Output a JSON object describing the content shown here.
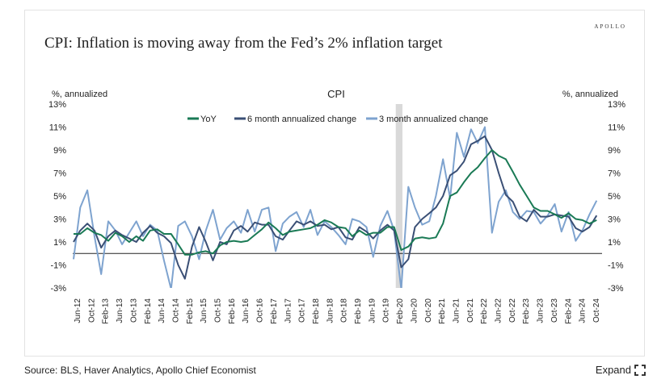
{
  "brand": "APOLLO",
  "title": "CPI: Inflation is moving away from the Fed’s 2% inflation target",
  "source": "Source: BLS, Haver Analytics, Apollo Chief Economist",
  "expand_label": "Expand",
  "chart_data": {
    "type": "line",
    "title": "CPI",
    "ylabel_left": "%, annualized",
    "ylabel_right": "%, annualized",
    "ylim": [
      -3,
      13
    ],
    "yticks": [
      "13%",
      "11%",
      "9%",
      "7%",
      "5%",
      "3%",
      "1%",
      "-1%",
      "-3%"
    ],
    "xlim": [
      2012.4,
      2025.05
    ],
    "xticks": [
      "Jun-12",
      "Oct-12",
      "Feb-13",
      "Jun-13",
      "Oct-13",
      "Feb-14",
      "Jun-14",
      "Oct-14",
      "Feb-15",
      "Jun-15",
      "Oct-15",
      "Feb-16",
      "Jun-16",
      "Oct-16",
      "Feb-17",
      "Jun-17",
      "Oct-17",
      "Feb-18",
      "Jun-18",
      "Oct-18",
      "Feb-19",
      "Jun-19",
      "Oct-19",
      "Feb-20",
      "Jun-20",
      "Oct-20",
      "Feb-21",
      "Jun-21",
      "Oct-21",
      "Feb-22",
      "Jun-22",
      "Oct-22",
      "Feb-23",
      "Jun-23",
      "Oct-23",
      "Feb-24",
      "Jun-24",
      "Oct-24"
    ],
    "recession": [
      2020.12,
      2020.28
    ],
    "legend_position": "top-center",
    "grid": false,
    "colors": {
      "yoy": "#1a7a55",
      "six_month": "#3a4f75",
      "three_month": "#7ea3cf",
      "recession": "#d9d9d9"
    },
    "series": [
      {
        "name": "YoY",
        "key": "yoy",
        "x": [
          2012.42,
          2012.58,
          2012.75,
          2012.92,
          2013.08,
          2013.25,
          2013.42,
          2013.58,
          2013.75,
          2013.92,
          2014.08,
          2014.25,
          2014.42,
          2014.58,
          2014.75,
          2014.92,
          2015.08,
          2015.25,
          2015.42,
          2015.58,
          2015.75,
          2015.92,
          2016.08,
          2016.25,
          2016.42,
          2016.58,
          2016.75,
          2016.92,
          2017.08,
          2017.25,
          2017.42,
          2017.58,
          2017.75,
          2017.92,
          2018.08,
          2018.25,
          2018.42,
          2018.58,
          2018.75,
          2018.92,
          2019.08,
          2019.25,
          2019.42,
          2019.58,
          2019.75,
          2019.92,
          2020.08,
          2020.25,
          2020.42,
          2020.58,
          2020.75,
          2020.92,
          2021.08,
          2021.25,
          2021.42,
          2021.58,
          2021.75,
          2021.92,
          2022.08,
          2022.25,
          2022.42,
          2022.58,
          2022.75,
          2022.92,
          2023.08,
          2023.25,
          2023.42,
          2023.58,
          2023.75,
          2023.92,
          2024.08,
          2024.25,
          2024.42,
          2024.58,
          2024.75,
          2024.92
        ],
        "y": [
          1.7,
          1.7,
          2.2,
          1.8,
          1.6,
          1.1,
          1.8,
          1.5,
          1.0,
          1.5,
          1.1,
          2.0,
          2.1,
          1.7,
          1.7,
          0.8,
          -0.1,
          -0.1,
          0.1,
          0.2,
          0.0,
          0.7,
          1.0,
          1.1,
          1.0,
          1.1,
          1.6,
          2.1,
          2.7,
          2.2,
          1.6,
          1.9,
          2.0,
          2.1,
          2.2,
          2.5,
          2.9,
          2.7,
          2.3,
          2.2,
          1.5,
          2.0,
          1.6,
          1.8,
          1.8,
          2.3,
          2.3,
          0.3,
          0.6,
          1.3,
          1.4,
          1.3,
          1.4,
          2.6,
          5.0,
          5.3,
          6.2,
          7.0,
          7.5,
          8.3,
          9.0,
          8.5,
          8.2,
          7.1,
          6.0,
          5.0,
          4.0,
          3.7,
          3.7,
          3.4,
          3.1,
          3.5,
          3.0,
          2.9,
          2.6,
          2.9
        ]
      },
      {
        "name": "6 month annualized change",
        "key": "six_month",
        "x": [
          2012.42,
          2012.58,
          2012.75,
          2012.92,
          2013.08,
          2013.25,
          2013.42,
          2013.58,
          2013.75,
          2013.92,
          2014.08,
          2014.25,
          2014.42,
          2014.58,
          2014.75,
          2014.92,
          2015.08,
          2015.25,
          2015.42,
          2015.58,
          2015.75,
          2015.92,
          2016.08,
          2016.25,
          2016.42,
          2016.58,
          2016.75,
          2016.92,
          2017.08,
          2017.25,
          2017.42,
          2017.58,
          2017.75,
          2017.92,
          2018.08,
          2018.25,
          2018.42,
          2018.58,
          2018.75,
          2018.92,
          2019.08,
          2019.25,
          2019.42,
          2019.58,
          2019.75,
          2019.92,
          2020.08,
          2020.25,
          2020.42,
          2020.58,
          2020.75,
          2020.92,
          2021.08,
          2021.25,
          2021.42,
          2021.58,
          2021.75,
          2021.92,
          2022.08,
          2022.25,
          2022.42,
          2022.58,
          2022.75,
          2022.92,
          2023.08,
          2023.25,
          2023.42,
          2023.58,
          2023.75,
          2023.92,
          2024.08,
          2024.25,
          2024.42,
          2024.58,
          2024.75,
          2024.92
        ],
        "y": [
          1.0,
          2.0,
          2.6,
          2.0,
          0.5,
          1.5,
          2.0,
          1.6,
          1.3,
          1.0,
          1.8,
          2.4,
          1.8,
          1.5,
          0.9,
          -1.0,
          -2.2,
          0.6,
          2.3,
          1.0,
          -0.6,
          1.0,
          0.8,
          2.0,
          2.4,
          1.9,
          2.7,
          2.5,
          2.5,
          1.5,
          1.2,
          2.0,
          2.8,
          2.5,
          2.8,
          2.4,
          2.5,
          2.1,
          2.3,
          1.4,
          1.2,
          2.3,
          1.9,
          1.3,
          2.0,
          2.5,
          2.0,
          -1.2,
          -0.5,
          2.3,
          3.0,
          3.5,
          4.0,
          5.0,
          6.8,
          7.2,
          8.0,
          9.5,
          9.8,
          10.2,
          9.0,
          7.0,
          5.1,
          4.5,
          3.2,
          2.8,
          3.8,
          3.2,
          3.2,
          3.4,
          3.3,
          3.2,
          2.2,
          1.9,
          2.3,
          3.3
        ]
      },
      {
        "name": "3 month annualized change",
        "key": "three_month",
        "x": [
          2012.42,
          2012.58,
          2012.75,
          2012.92,
          2013.08,
          2013.25,
          2013.42,
          2013.58,
          2013.75,
          2013.92,
          2014.08,
          2014.25,
          2014.42,
          2014.58,
          2014.75,
          2014.92,
          2015.08,
          2015.25,
          2015.42,
          2015.58,
          2015.75,
          2015.92,
          2016.08,
          2016.25,
          2016.42,
          2016.58,
          2016.75,
          2016.92,
          2017.08,
          2017.25,
          2017.42,
          2017.58,
          2017.75,
          2017.92,
          2018.08,
          2018.25,
          2018.42,
          2018.58,
          2018.75,
          2018.92,
          2019.08,
          2019.25,
          2019.42,
          2019.58,
          2019.75,
          2019.92,
          2020.08,
          2020.25,
          2020.42,
          2020.58,
          2020.75,
          2020.92,
          2021.08,
          2021.25,
          2021.42,
          2021.58,
          2021.75,
          2021.92,
          2022.08,
          2022.25,
          2022.42,
          2022.58,
          2022.75,
          2022.92,
          2023.08,
          2023.25,
          2023.42,
          2023.58,
          2023.75,
          2023.92,
          2024.08,
          2024.25,
          2024.42,
          2024.58,
          2024.75,
          2024.92
        ],
        "y": [
          -0.5,
          4.0,
          5.5,
          1.5,
          -1.8,
          2.8,
          2.0,
          0.8,
          1.8,
          2.8,
          1.5,
          2.5,
          2.0,
          -0.6,
          -3.1,
          2.4,
          2.8,
          1.5,
          -0.5,
          2.0,
          3.8,
          1.2,
          2.2,
          2.8,
          1.8,
          3.8,
          1.9,
          3.8,
          4.0,
          0.2,
          2.6,
          3.2,
          3.6,
          2.3,
          3.8,
          1.6,
          2.8,
          2.3,
          1.6,
          0.8,
          3.0,
          2.8,
          2.3,
          -0.3,
          2.4,
          3.7,
          2.0,
          -3.1,
          5.8,
          4.0,
          2.5,
          2.8,
          5.0,
          8.2,
          4.8,
          10.5,
          8.4,
          10.8,
          9.6,
          11.0,
          1.8,
          4.5,
          5.5,
          3.6,
          3.0,
          3.7,
          3.6,
          2.6,
          3.3,
          4.3,
          1.9,
          3.6,
          1.1,
          2.0,
          3.4,
          4.6
        ]
      }
    ]
  }
}
